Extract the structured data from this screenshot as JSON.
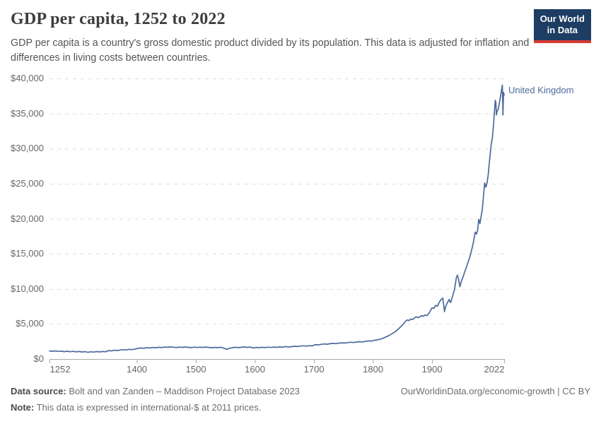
{
  "header": {
    "title": "GDP per capita, 1252 to 2022",
    "subtitle": "GDP per capita is a country's gross domestic product divided by its population. This data is adjusted for inflation and differences in living costs between countries.",
    "logo": {
      "line1": "Our World",
      "line2": "in Data",
      "bg_color": "#1d3d63",
      "accent_color": "#d73c34"
    }
  },
  "chart_data": {
    "type": "line",
    "title": "GDP per capita, 1252 to 2022",
    "xlabel": "",
    "ylabel": "",
    "xlim": [
      1252,
      2022
    ],
    "ylim": [
      0,
      40000
    ],
    "grid": "horizontal-dashed",
    "legend_position": "end-of-line",
    "x_ticks": [
      1252,
      1400,
      1500,
      1600,
      1700,
      1800,
      1900,
      2022
    ],
    "x_tick_labels": [
      "1252",
      "1400",
      "1500",
      "1600",
      "1700",
      "1800",
      "1900",
      "2022"
    ],
    "y_ticks": [
      0,
      5000,
      10000,
      15000,
      20000,
      25000,
      30000,
      35000,
      40000
    ],
    "y_tick_labels": [
      "$0",
      "$5,000",
      "$10,000",
      "$15,000",
      "$20,000",
      "$25,000",
      "$30,000",
      "$35,000",
      "$40,000"
    ],
    "series": [
      {
        "name": "United Kingdom",
        "color": "#4c6a9c",
        "points": [
          [
            1252,
            1140
          ],
          [
            1257,
            1100
          ],
          [
            1262,
            1160
          ],
          [
            1267,
            1080
          ],
          [
            1272,
            1120
          ],
          [
            1277,
            1050
          ],
          [
            1282,
            1110
          ],
          [
            1287,
            1040
          ],
          [
            1292,
            1090
          ],
          [
            1297,
            1020
          ],
          [
            1302,
            1070
          ],
          [
            1307,
            1000
          ],
          [
            1312,
            1050
          ],
          [
            1317,
            950
          ],
          [
            1322,
            1030
          ],
          [
            1327,
            990
          ],
          [
            1332,
            1060
          ],
          [
            1337,
            1010
          ],
          [
            1342,
            1070
          ],
          [
            1347,
            1030
          ],
          [
            1352,
            1200
          ],
          [
            1357,
            1160
          ],
          [
            1362,
            1250
          ],
          [
            1367,
            1210
          ],
          [
            1372,
            1280
          ],
          [
            1377,
            1330
          ],
          [
            1382,
            1290
          ],
          [
            1387,
            1370
          ],
          [
            1392,
            1340
          ],
          [
            1397,
            1420
          ],
          [
            1402,
            1510
          ],
          [
            1407,
            1570
          ],
          [
            1412,
            1530
          ],
          [
            1417,
            1610
          ],
          [
            1422,
            1570
          ],
          [
            1427,
            1640
          ],
          [
            1432,
            1600
          ],
          [
            1437,
            1670
          ],
          [
            1442,
            1630
          ],
          [
            1447,
            1700
          ],
          [
            1452,
            1660
          ],
          [
            1457,
            1720
          ],
          [
            1462,
            1680
          ],
          [
            1467,
            1630
          ],
          [
            1472,
            1700
          ],
          [
            1477,
            1650
          ],
          [
            1482,
            1710
          ],
          [
            1487,
            1660
          ],
          [
            1492,
            1620
          ],
          [
            1497,
            1680
          ],
          [
            1502,
            1640
          ],
          [
            1507,
            1690
          ],
          [
            1512,
            1650
          ],
          [
            1517,
            1700
          ],
          [
            1522,
            1650
          ],
          [
            1527,
            1600
          ],
          [
            1532,
            1660
          ],
          [
            1537,
            1610
          ],
          [
            1542,
            1670
          ],
          [
            1547,
            1550
          ],
          [
            1552,
            1380
          ],
          [
            1557,
            1530
          ],
          [
            1562,
            1610
          ],
          [
            1567,
            1660
          ],
          [
            1572,
            1620
          ],
          [
            1577,
            1670
          ],
          [
            1582,
            1710
          ],
          [
            1587,
            1650
          ],
          [
            1592,
            1700
          ],
          [
            1597,
            1570
          ],
          [
            1602,
            1650
          ],
          [
            1607,
            1610
          ],
          [
            1612,
            1670
          ],
          [
            1617,
            1620
          ],
          [
            1622,
            1690
          ],
          [
            1627,
            1640
          ],
          [
            1632,
            1700
          ],
          [
            1637,
            1660
          ],
          [
            1642,
            1720
          ],
          [
            1647,
            1680
          ],
          [
            1652,
            1770
          ],
          [
            1657,
            1710
          ],
          [
            1662,
            1760
          ],
          [
            1667,
            1810
          ],
          [
            1672,
            1770
          ],
          [
            1677,
            1840
          ],
          [
            1682,
            1880
          ],
          [
            1687,
            1830
          ],
          [
            1692,
            1890
          ],
          [
            1697,
            1860
          ],
          [
            1702,
            2060
          ],
          [
            1707,
            2010
          ],
          [
            1712,
            2090
          ],
          [
            1717,
            2150
          ],
          [
            1722,
            2110
          ],
          [
            1727,
            2180
          ],
          [
            1732,
            2230
          ],
          [
            1737,
            2190
          ],
          [
            1742,
            2260
          ],
          [
            1747,
            2310
          ],
          [
            1752,
            2270
          ],
          [
            1757,
            2340
          ],
          [
            1762,
            2390
          ],
          [
            1767,
            2350
          ],
          [
            1772,
            2420
          ],
          [
            1777,
            2470
          ],
          [
            1782,
            2430
          ],
          [
            1787,
            2510
          ],
          [
            1792,
            2580
          ],
          [
            1797,
            2550
          ],
          [
            1802,
            2660
          ],
          [
            1807,
            2730
          ],
          [
            1812,
            2820
          ],
          [
            1817,
            2950
          ],
          [
            1822,
            3150
          ],
          [
            1827,
            3350
          ],
          [
            1832,
            3600
          ],
          [
            1837,
            3850
          ],
          [
            1842,
            4200
          ],
          [
            1847,
            4600
          ],
          [
            1852,
            5050
          ],
          [
            1855,
            5380
          ],
          [
            1858,
            5560
          ],
          [
            1861,
            5480
          ],
          [
            1864,
            5700
          ],
          [
            1867,
            5620
          ],
          [
            1870,
            5850
          ],
          [
            1873,
            6020
          ],
          [
            1876,
            5890
          ],
          [
            1879,
            5980
          ],
          [
            1882,
            6190
          ],
          [
            1885,
            6090
          ],
          [
            1888,
            6280
          ],
          [
            1891,
            6180
          ],
          [
            1894,
            6420
          ],
          [
            1897,
            6850
          ],
          [
            1900,
            7300
          ],
          [
            1903,
            7210
          ],
          [
            1906,
            7650
          ],
          [
            1909,
            7520
          ],
          [
            1912,
            8050
          ],
          [
            1915,
            8450
          ],
          [
            1918,
            8700
          ],
          [
            1920,
            7500
          ],
          [
            1921,
            6750
          ],
          [
            1923,
            7500
          ],
          [
            1925,
            7880
          ],
          [
            1927,
            8180
          ],
          [
            1929,
            8500
          ],
          [
            1931,
            8050
          ],
          [
            1932,
            8150
          ],
          [
            1934,
            8750
          ],
          [
            1936,
            9350
          ],
          [
            1938,
            9950
          ],
          [
            1940,
            11020
          ],
          [
            1941,
            11580
          ],
          [
            1943,
            11960
          ],
          [
            1945,
            11280
          ],
          [
            1947,
            10310
          ],
          [
            1949,
            10920
          ],
          [
            1951,
            11420
          ],
          [
            1953,
            11830
          ],
          [
            1955,
            12420
          ],
          [
            1957,
            12810
          ],
          [
            1960,
            13560
          ],
          [
            1963,
            14300
          ],
          [
            1965,
            14900
          ],
          [
            1968,
            15900
          ],
          [
            1970,
            16700
          ],
          [
            1973,
            18100
          ],
          [
            1975,
            17800
          ],
          [
            1977,
            18300
          ],
          [
            1979,
            19900
          ],
          [
            1981,
            19300
          ],
          [
            1983,
            20300
          ],
          [
            1985,
            21300
          ],
          [
            1987,
            23200
          ],
          [
            1989,
            25100
          ],
          [
            1991,
            24500
          ],
          [
            1993,
            25100
          ],
          [
            1995,
            26300
          ],
          [
            1997,
            28000
          ],
          [
            2000,
            30500
          ],
          [
            2002,
            31500
          ],
          [
            2004,
            33400
          ],
          [
            2005,
            34600
          ],
          [
            2007,
            36900
          ],
          [
            2008,
            36500
          ],
          [
            2009,
            34800
          ],
          [
            2010,
            35300
          ],
          [
            2012,
            35600
          ],
          [
            2014,
            36500
          ],
          [
            2016,
            37500
          ],
          [
            2018,
            38600
          ],
          [
            2019,
            39050
          ],
          [
            2020,
            34800
          ],
          [
            2021,
            38000
          ],
          [
            2022,
            37600
          ]
        ]
      }
    ],
    "colors": {
      "line": "#4c6a9c",
      "grid": "#dedede",
      "axis": "#a6a6a6",
      "tick_text": "#666666"
    }
  },
  "footer": {
    "data_source_label": "Data source:",
    "data_source": "Bolt and van Zanden – Maddison Project Database 2023",
    "note_label": "Note:",
    "note": "This data is expressed in international-$ at 2011 prices.",
    "link": "OurWorldinData.org/economic-growth | CC BY"
  }
}
